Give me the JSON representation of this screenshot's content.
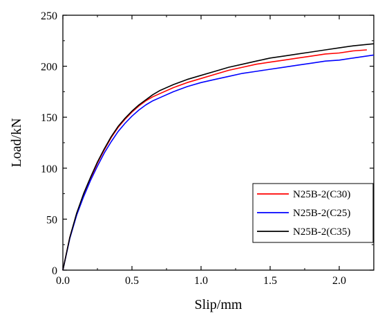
{
  "chart_data": {
    "type": "line",
    "xlabel": "Slip/mm",
    "ylabel": "Load/kN",
    "xlim": [
      0.0,
      2.25
    ],
    "ylim": [
      0,
      250
    ],
    "x_ticks": [
      0.0,
      0.5,
      1.0,
      1.5,
      2.0
    ],
    "x_tick_labels": [
      "0.0",
      "0.5",
      "1.0",
      "1.5",
      "2.0"
    ],
    "y_ticks": [
      0,
      50,
      100,
      150,
      200,
      250
    ],
    "y_tick_labels": [
      "0",
      "50",
      "100",
      "150",
      "200",
      "250"
    ],
    "grid": false,
    "legend_position": "lower-right",
    "series": [
      {
        "name": "N25B-2(C30)",
        "color": "#ff0000",
        "x": [
          0,
          0.05,
          0.1,
          0.15,
          0.2,
          0.25,
          0.3,
          0.35,
          0.4,
          0.45,
          0.5,
          0.55,
          0.6,
          0.65,
          0.7,
          0.8,
          0.9,
          1.0,
          1.1,
          1.2,
          1.3,
          1.4,
          1.5,
          1.6,
          1.7,
          1.8,
          1.9,
          2.0,
          2.1,
          2.2
        ],
        "y": [
          0,
          32,
          55,
          74,
          90,
          105,
          118,
          130,
          140,
          148,
          155,
          161,
          166,
          170,
          173,
          179,
          184,
          188,
          192,
          196,
          199,
          202,
          204,
          206,
          208,
          210,
          212,
          213,
          215,
          216
        ]
      },
      {
        "name": "N25B-2(C25)",
        "color": "#0000ff",
        "x": [
          0,
          0.05,
          0.1,
          0.15,
          0.2,
          0.25,
          0.3,
          0.35,
          0.4,
          0.45,
          0.5,
          0.55,
          0.6,
          0.65,
          0.7,
          0.8,
          0.9,
          1.0,
          1.1,
          1.2,
          1.3,
          1.4,
          1.5,
          1.6,
          1.7,
          1.8,
          1.9,
          2.0,
          2.1,
          2.25
        ],
        "y": [
          0,
          31,
          54,
          72,
          88,
          102,
          115,
          126,
          136,
          144,
          151,
          157,
          162,
          166,
          169,
          175,
          180,
          184,
          187,
          190,
          193,
          195,
          197,
          199,
          201,
          203,
          205,
          206,
          208,
          211
        ]
      },
      {
        "name": "N25B-2(C35)",
        "color": "#000000",
        "x": [
          0,
          0.05,
          0.1,
          0.15,
          0.2,
          0.25,
          0.3,
          0.35,
          0.4,
          0.45,
          0.5,
          0.55,
          0.6,
          0.65,
          0.7,
          0.8,
          0.9,
          1.0,
          1.1,
          1.2,
          1.3,
          1.4,
          1.5,
          1.6,
          1.7,
          1.8,
          1.9,
          2.0,
          2.1,
          2.25
        ],
        "y": [
          0,
          32,
          56,
          75,
          91,
          106,
          119,
          131,
          141,
          149,
          156,
          162,
          167,
          172,
          176,
          182,
          187,
          191,
          195,
          199,
          202,
          205,
          208,
          210,
          212,
          214,
          216,
          218,
          220,
          222
        ]
      }
    ]
  }
}
